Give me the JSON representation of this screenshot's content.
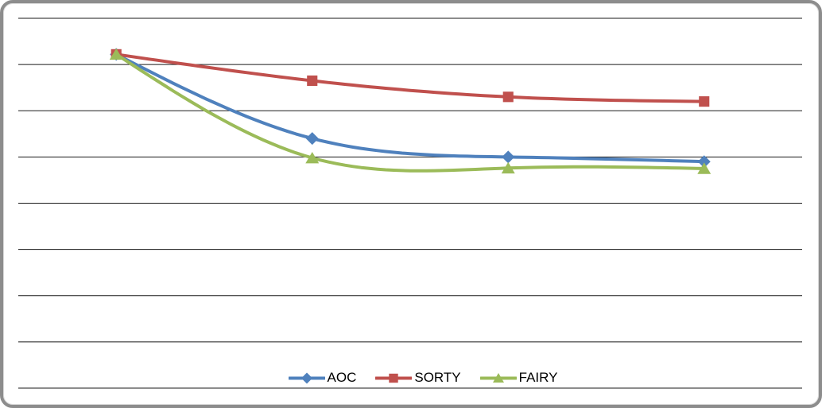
{
  "frame": {
    "background": "#FFFFFF",
    "border_color": "#8D8D8D"
  },
  "chart_data": {
    "type": "line",
    "smooth": true,
    "title": "",
    "x": [
      1,
      2,
      3,
      4
    ],
    "x_axis": {
      "tick_labels_visible": false
    },
    "y_axis": {
      "tick_labels_visible": false,
      "min": 0,
      "max": 8,
      "gridline_count": 9
    },
    "grid": true,
    "gridline_color": "#1a1a1a",
    "plot_background": "#FFFFFF",
    "legend": {
      "position": "bottom-center"
    },
    "series": [
      {
        "name": "AOC",
        "color": "#4F81BD",
        "marker": "diamond",
        "values": [
          7.22,
          5.4,
          5.0,
          4.9
        ]
      },
      {
        "name": "SORTY",
        "color": "#C0504D",
        "marker": "square",
        "values": [
          7.22,
          6.65,
          6.3,
          6.2
        ]
      },
      {
        "name": "FAIRY",
        "color": "#9BBB59",
        "marker": "triangle",
        "values": [
          7.22,
          4.98,
          4.76,
          4.75
        ]
      }
    ]
  }
}
